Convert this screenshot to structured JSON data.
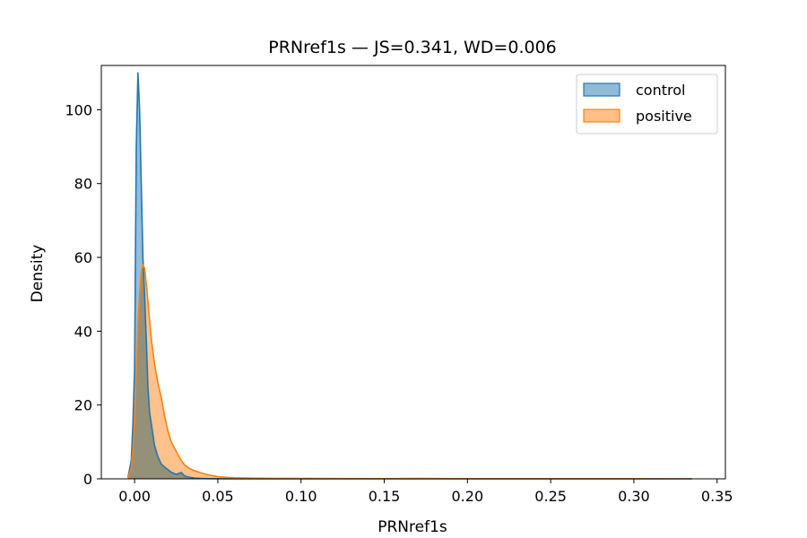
{
  "chart_data": {
    "type": "area",
    "title": "PRNref1s — JS=0.341, WD=0.006",
    "xlabel": "PRNref1s",
    "ylabel": "Density",
    "xlim": [
      -0.02,
      0.355
    ],
    "ylim": [
      0,
      112
    ],
    "xticks": [
      0.0,
      0.05,
      0.1,
      0.15,
      0.2,
      0.25,
      0.3,
      0.35
    ],
    "xtick_labels": [
      "0.00",
      "0.05",
      "0.10",
      "0.15",
      "0.20",
      "0.25",
      "0.30",
      "0.35"
    ],
    "yticks": [
      0,
      20,
      40,
      60,
      80,
      100
    ],
    "ytick_labels": [
      "0",
      "20",
      "40",
      "60",
      "80",
      "100"
    ],
    "legend_position": "top-right",
    "series": [
      {
        "name": "control",
        "color": "#1f77b4",
        "fill": "#8fbbd9",
        "x": [
          -0.004,
          -0.002,
          -0.001,
          0.0,
          0.001,
          0.002,
          0.003,
          0.004,
          0.005,
          0.006,
          0.007,
          0.008,
          0.009,
          0.01,
          0.012,
          0.014,
          0.016,
          0.018,
          0.02,
          0.022,
          0.025,
          0.028,
          0.03,
          0.033,
          0.036,
          0.04,
          0.045,
          0.05,
          0.06,
          0.08,
          0.12,
          0.2,
          0.3,
          0.335
        ],
        "y": [
          0.3,
          5,
          15,
          30,
          90,
          110,
          100,
          80,
          60,
          50,
          38,
          25,
          18,
          15,
          9,
          6,
          4,
          3.2,
          2.5,
          1.8,
          1.2,
          1.7,
          0.8,
          0.4,
          0.2,
          0.1,
          0.05,
          0.03,
          0.02,
          0.01,
          0.005,
          0.003,
          0.002,
          0.0
        ]
      },
      {
        "name": "positive",
        "color": "#ff7f0e",
        "fill": "#ffbf86",
        "x": [
          -0.004,
          -0.002,
          -0.001,
          0.0,
          0.001,
          0.002,
          0.003,
          0.004,
          0.005,
          0.006,
          0.007,
          0.008,
          0.009,
          0.01,
          0.012,
          0.014,
          0.016,
          0.018,
          0.02,
          0.022,
          0.025,
          0.028,
          0.03,
          0.033,
          0.036,
          0.04,
          0.045,
          0.05,
          0.055,
          0.06,
          0.07,
          0.08,
          0.1,
          0.12,
          0.15,
          0.17,
          0.2,
          0.25,
          0.3,
          0.335
        ],
        "y": [
          0.2,
          3,
          8,
          15,
          28,
          42,
          50,
          56,
          58,
          57,
          53,
          48,
          43,
          38,
          31,
          26,
          22,
          17,
          13,
          10,
          7.5,
          5,
          3.8,
          2.8,
          2.2,
          1.6,
          1.0,
          0.6,
          0.4,
          0.3,
          0.2,
          0.15,
          0.1,
          0.08,
          0.05,
          0.1,
          0.02,
          0.01,
          0.005,
          0.0
        ]
      }
    ]
  }
}
